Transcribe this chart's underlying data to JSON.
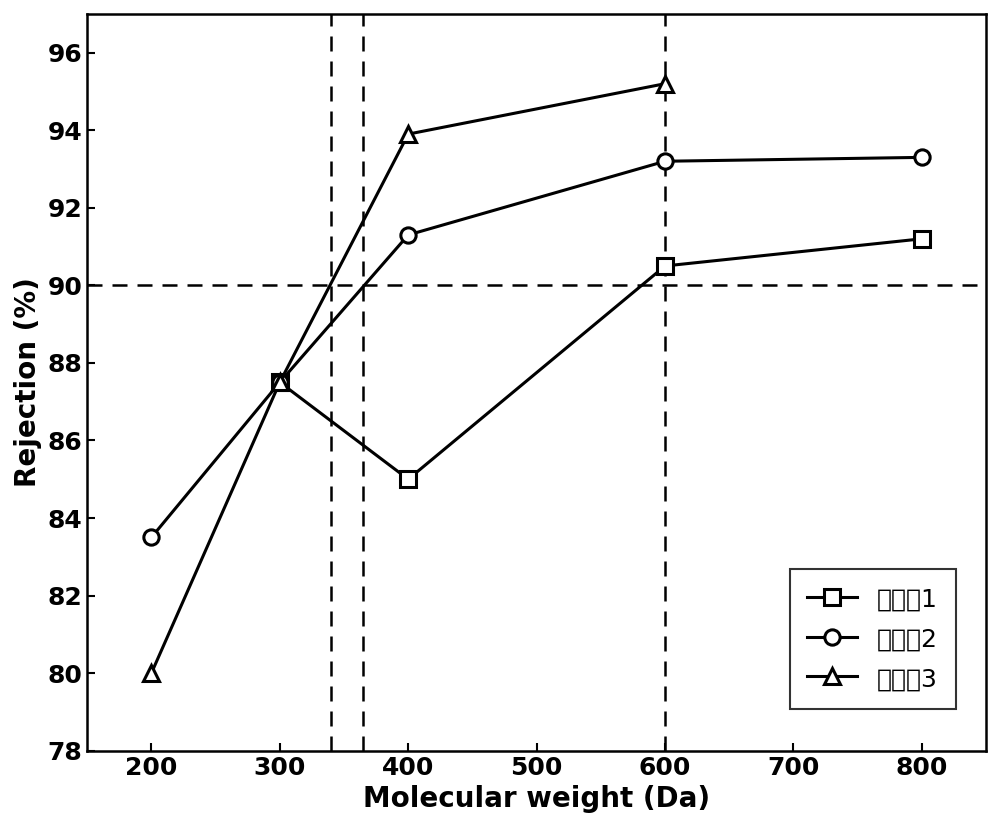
{
  "series1": {
    "label": "实施入1",
    "x": [
      300,
      400,
      600,
      800
    ],
    "y": [
      87.5,
      85.0,
      90.5,
      91.2
    ],
    "marker": "s"
  },
  "series2": {
    "label": "实施入2",
    "x": [
      200,
      300,
      400,
      600,
      800
    ],
    "y": [
      83.5,
      87.5,
      91.3,
      93.2,
      93.3
    ],
    "marker": "o"
  },
  "series3": {
    "label": "实施入3",
    "x": [
      200,
      300,
      400,
      600
    ],
    "y": [
      80.0,
      87.5,
      93.9,
      95.2
    ],
    "marker": "^"
  },
  "hline_y": 90,
  "vline1a_x": 340,
  "vline1b_x": 365,
  "vline2_x": 600,
  "xlim": [
    150,
    850
  ],
  "ylim": [
    78,
    97
  ],
  "xticks": [
    200,
    300,
    400,
    500,
    600,
    700,
    800
  ],
  "yticks": [
    78,
    80,
    82,
    84,
    86,
    88,
    90,
    92,
    94,
    96
  ],
  "xlabel": "Molecular weight (Da)",
  "ylabel": "Rejection (%)",
  "linewidth": 2.2,
  "markersize": 11,
  "markeredgewidth": 2.2,
  "font_size": 20,
  "tick_font_size": 18,
  "legend_font_size": 18,
  "color": "#000000",
  "dashed_color": "#000000",
  "dashed_linewidth": 1.8
}
